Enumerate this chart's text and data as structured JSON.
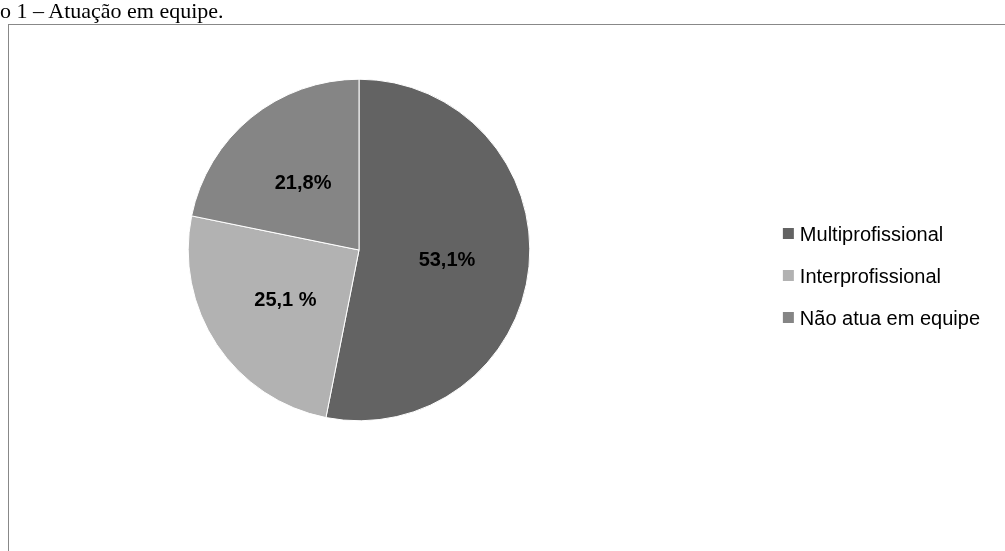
{
  "chart_data": {
    "type": "pie",
    "title": "o 1 – Atuação em equipe.",
    "categories": [
      "Multiprofissional",
      "Interprofissional",
      "Não atua em equipe"
    ],
    "values": [
      53.1,
      25.1,
      21.8
    ],
    "value_labels": [
      "53,1%",
      "25,1 %",
      "21,8%"
    ],
    "colors": [
      "#636363",
      "#b2b2b2",
      "#858585"
    ],
    "legend": "right"
  }
}
